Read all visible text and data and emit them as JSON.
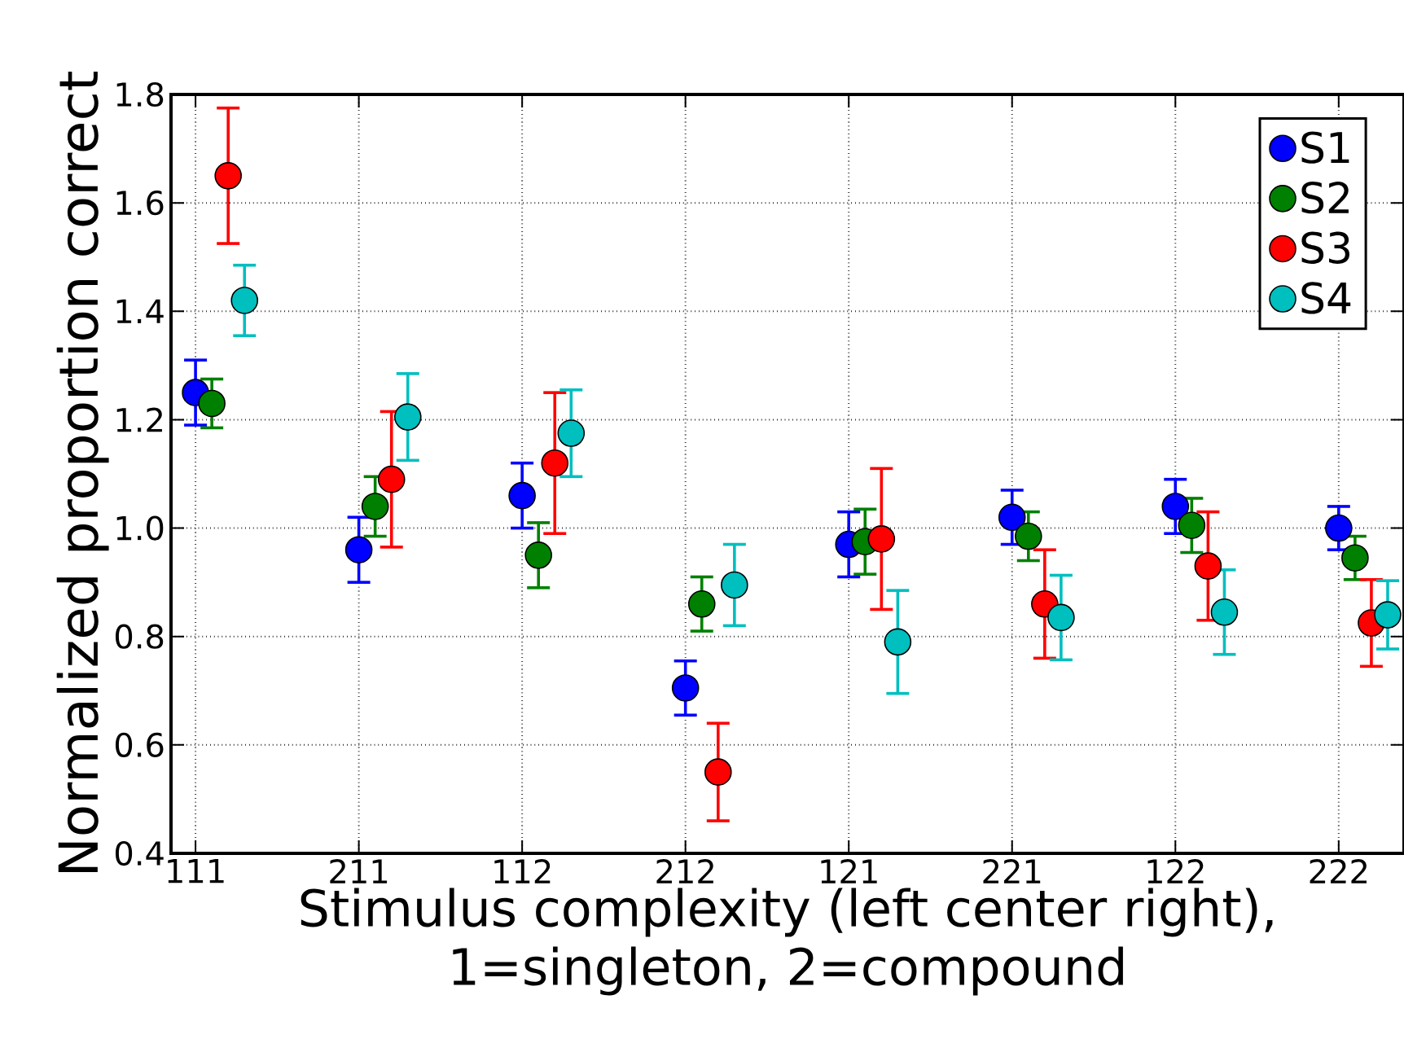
{
  "chart_data": {
    "type": "scatter",
    "xlabel": "Stimulus complexity (left center right), 1=singleton, 2=compound",
    "ylabel": "Normalized proportion correct",
    "categories": [
      "111",
      "211",
      "112",
      "212",
      "121",
      "221",
      "122",
      "222"
    ],
    "ylim": [
      0.4,
      1.8
    ],
    "yticks": [
      0.4,
      0.6,
      0.8,
      {
        "value": 1.0,
        "label": "1.0"
      },
      1.2,
      1.4,
      1.6,
      1.8
    ],
    "grid": true,
    "legend": "top right",
    "marker": "circle",
    "series": [
      {
        "name": "S1",
        "color": "#0000ff",
        "values": [
          1.25,
          0.96,
          1.06,
          0.705,
          0.97,
          1.02,
          1.04,
          1.0
        ],
        "errors": [
          0.06,
          0.06,
          0.06,
          0.05,
          0.06,
          0.05,
          0.05,
          0.04
        ]
      },
      {
        "name": "S2",
        "color": "#008000",
        "values": [
          1.23,
          1.04,
          0.95,
          0.86,
          0.975,
          0.985,
          1.005,
          0.945
        ],
        "errors": [
          0.045,
          0.055,
          0.06,
          0.05,
          0.06,
          0.045,
          0.05,
          0.04
        ]
      },
      {
        "name": "S3",
        "color": "#ff0000",
        "values": [
          1.65,
          1.09,
          1.12,
          0.55,
          0.98,
          0.86,
          0.93,
          0.825
        ],
        "errors": [
          0.125,
          0.125,
          0.13,
          0.09,
          0.13,
          0.1,
          0.1,
          0.08
        ]
      },
      {
        "name": "S4",
        "color": "#00bfbf",
        "values": [
          1.42,
          1.205,
          1.175,
          0.895,
          0.79,
          0.835,
          0.845,
          0.84
        ],
        "errors": [
          0.065,
          0.08,
          0.08,
          0.075,
          0.095,
          0.078,
          0.078,
          0.063
        ]
      }
    ]
  }
}
